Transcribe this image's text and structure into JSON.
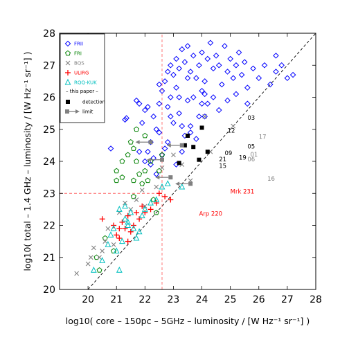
{
  "chart_data": {
    "type": "scatter",
    "xlabel": "log10( core – 150pc – 5GHz – luminosity / [W Hz⁻¹ sr⁻¹] )",
    "ylabel": "log10( total – 1.4 GHz – luminosity / [W Hz⁻¹ sr⁻¹] )",
    "xlim": [
      19,
      28
    ],
    "ylim": [
      20,
      28
    ],
    "xticks": [
      "20",
      "21",
      "22",
      "23",
      "24",
      "25",
      "26",
      "27",
      "28"
    ],
    "yticks": [
      "20",
      "21",
      "22",
      "23",
      "24",
      "25",
      "26",
      "27",
      "28"
    ],
    "grid": false,
    "legend_position": "top-left",
    "reference_lines": {
      "one_to_one": {
        "from": [
          20,
          20
        ],
        "to": [
          28,
          28
        ],
        "style": "dashed",
        "color": "#000000"
      },
      "vertical_cut": {
        "x": 22.6,
        "y_from": 20,
        "y_to": 28,
        "style": "dashed",
        "color": "#ff6666"
      },
      "horizontal_cut": {
        "y": 23.0,
        "x_from": 19,
        "x_to": 22.6,
        "style": "dashed",
        "color": "#ff6666"
      }
    },
    "legend": {
      "entries": [
        {
          "label": "FRII",
          "marker": "diamond",
          "color": "#0000ff"
        },
        {
          "label": "FRI",
          "marker": "pentagon",
          "color": "#008000"
        },
        {
          "label": "BQS",
          "marker": "x",
          "color": "#808080"
        },
        {
          "label": "ULIRG",
          "marker": "plus",
          "color": "#ff0000"
        },
        {
          "label": "RQQ-KUK",
          "marker": "triangle",
          "color": "#00bfbf"
        }
      ],
      "header": "– this paper –",
      "this_paper": [
        {
          "label": "detection",
          "marker": "square",
          "color": "#000000"
        },
        {
          "label": "limit",
          "marker": "arrow",
          "color": "#808080"
        }
      ]
    },
    "series": [
      {
        "name": "FRII",
        "marker": "diamond",
        "color": "#0000ff",
        "points": [
          [
            20.8,
            24.4
          ],
          [
            21.3,
            25.3
          ],
          [
            21.35,
            25.35
          ],
          [
            21.9,
            25.2
          ],
          [
            21.8,
            24.3
          ],
          [
            21.7,
            25.9
          ],
          [
            21.8,
            25.8
          ],
          [
            22.0,
            25.6
          ],
          [
            22.1,
            25.7
          ],
          [
            22.3,
            25.4
          ],
          [
            22.4,
            25.0
          ],
          [
            22.5,
            24.9
          ],
          [
            22.2,
            24.6
          ],
          [
            22.1,
            24.3
          ],
          [
            22.3,
            24.1
          ],
          [
            22.6,
            24.2
          ],
          [
            22.7,
            24.4
          ],
          [
            22.8,
            24.6
          ],
          [
            22.5,
            25.8
          ],
          [
            22.6,
            26.2
          ],
          [
            22.7,
            26.5
          ],
          [
            22.8,
            25.7
          ],
          [
            22.9,
            25.4
          ],
          [
            22.9,
            26.0
          ],
          [
            23.0,
            25.2
          ],
          [
            23.1,
            26.3
          ],
          [
            23.2,
            25.5
          ],
          [
            23.3,
            25.1
          ],
          [
            23.4,
            24.8
          ],
          [
            23.5,
            25.9
          ],
          [
            23.6,
            24.9
          ],
          [
            23.5,
            26.6
          ],
          [
            23.7,
            26.0
          ],
          [
            23.8,
            24.7
          ],
          [
            23.9,
            25.4
          ],
          [
            24.0,
            25.8
          ],
          [
            24.1,
            26.1
          ],
          [
            23.2,
            26.0
          ],
          [
            22.5,
            26.4
          ],
          [
            22.8,
            26.8
          ],
          [
            22.9,
            27.0
          ],
          [
            23.0,
            26.7
          ],
          [
            23.1,
            27.2
          ],
          [
            23.2,
            26.9
          ],
          [
            23.3,
            27.5
          ],
          [
            23.4,
            27.1
          ],
          [
            23.5,
            27.6
          ],
          [
            23.6,
            26.8
          ],
          [
            23.7,
            27.3
          ],
          [
            23.8,
            26.6
          ],
          [
            23.9,
            27.0
          ],
          [
            24.0,
            27.4
          ],
          [
            24.1,
            26.5
          ],
          [
            24.2,
            27.2
          ],
          [
            24.3,
            27.7
          ],
          [
            24.4,
            26.9
          ],
          [
            24.5,
            27.3
          ],
          [
            24.6,
            27.0
          ],
          [
            24.7,
            26.4
          ],
          [
            24.8,
            27.6
          ],
          [
            24.9,
            26.8
          ],
          [
            25.0,
            27.2
          ],
          [
            25.1,
            26.6
          ],
          [
            25.2,
            27.0
          ],
          [
            25.3,
            27.4
          ],
          [
            25.4,
            26.7
          ],
          [
            25.5,
            27.1
          ],
          [
            25.6,
            26.3
          ],
          [
            25.8,
            26.9
          ],
          [
            26.0,
            26.6
          ],
          [
            26.2,
            27.0
          ],
          [
            26.4,
            26.4
          ],
          [
            26.6,
            26.8
          ],
          [
            26.8,
            27.0
          ],
          [
            27.0,
            26.6
          ],
          [
            27.2,
            26.7
          ],
          [
            24.0,
            26.2
          ],
          [
            24.2,
            25.8
          ],
          [
            24.4,
            26.0
          ],
          [
            24.6,
            25.6
          ],
          [
            24.9,
            25.9
          ],
          [
            25.2,
            26.1
          ],
          [
            25.6,
            25.8
          ],
          [
            23.3,
            24.3
          ],
          [
            23.1,
            23.9
          ],
          [
            22.4,
            23.6
          ],
          [
            22.2,
            23.9
          ],
          [
            22.0,
            24.0
          ],
          [
            24.1,
            25.4
          ],
          [
            23.6,
            25.1
          ],
          [
            26.6,
            27.3
          ]
        ]
      },
      {
        "name": "FRI",
        "marker": "pentagon",
        "color": "#008000",
        "points": [
          [
            20.3,
            21.0
          ],
          [
            20.4,
            20.6
          ],
          [
            20.6,
            21.6
          ],
          [
            20.9,
            21.2
          ],
          [
            21.0,
            23.4
          ],
          [
            21.0,
            23.7
          ],
          [
            21.2,
            23.5
          ],
          [
            21.2,
            24.0
          ],
          [
            21.4,
            24.2
          ],
          [
            21.5,
            24.6
          ],
          [
            21.6,
            24.4
          ],
          [
            21.6,
            23.4
          ],
          [
            21.6,
            22.9
          ],
          [
            21.7,
            25.0
          ],
          [
            21.7,
            24.0
          ],
          [
            21.8,
            23.6
          ],
          [
            21.9,
            23.3
          ],
          [
            22.0,
            24.8
          ],
          [
            22.0,
            23.7
          ],
          [
            22.1,
            23.4
          ],
          [
            22.2,
            24.0
          ],
          [
            22.3,
            22.8
          ],
          [
            22.4,
            22.4
          ],
          [
            22.5,
            23.7
          ],
          [
            22.6,
            24.2
          ]
        ]
      },
      {
        "name": "BQS",
        "marker": "x",
        "color": "#808080",
        "points": [
          [
            19.6,
            20.5
          ],
          [
            20.0,
            20.8
          ],
          [
            20.1,
            21.0
          ],
          [
            20.2,
            21.3
          ],
          [
            20.4,
            21.0
          ],
          [
            20.5,
            21.2
          ],
          [
            20.6,
            21.5
          ],
          [
            20.7,
            21.9
          ],
          [
            20.9,
            21.4
          ],
          [
            21.1,
            22.4
          ],
          [
            21.3,
            22.7
          ],
          [
            21.5,
            22.5
          ],
          [
            21.7,
            22.8
          ],
          [
            21.9,
            23.1
          ],
          [
            22.0,
            22.6
          ],
          [
            22.4,
            23.2
          ],
          [
            22.6,
            23.8
          ],
          [
            23.0,
            24.2
          ],
          [
            23.3,
            23.9
          ],
          [
            23.6,
            23.4
          ],
          [
            24.1,
            25.4
          ],
          [
            24.3,
            24.3
          ],
          [
            25.1,
            25.1
          ]
        ]
      },
      {
        "name": "ULIRG",
        "marker": "plus",
        "color": "#ff0000",
        "points": [
          [
            20.5,
            22.2
          ],
          [
            20.9,
            22.0
          ],
          [
            21.0,
            21.7
          ],
          [
            21.1,
            21.6
          ],
          [
            21.2,
            22.1
          ],
          [
            21.3,
            21.9
          ],
          [
            21.4,
            22.3
          ],
          [
            21.5,
            21.8
          ],
          [
            21.6,
            22.0
          ],
          [
            21.7,
            22.4
          ],
          [
            21.8,
            22.2
          ],
          [
            21.9,
            22.6
          ],
          [
            22.0,
            22.4
          ],
          [
            22.2,
            22.5
          ],
          [
            22.4,
            22.7
          ],
          [
            22.5,
            23.0
          ],
          [
            22.7,
            22.9
          ],
          [
            22.9,
            22.8
          ],
          [
            21.1,
            21.9
          ],
          [
            21.4,
            21.5
          ]
        ]
      },
      {
        "name": "RQQ-KUK",
        "marker": "triangle",
        "color": "#00bfbf",
        "points": [
          [
            20.2,
            20.6
          ],
          [
            20.5,
            20.9
          ],
          [
            20.7,
            21.4
          ],
          [
            20.8,
            21.7
          ],
          [
            20.9,
            21.9
          ],
          [
            21.0,
            21.2
          ],
          [
            21.1,
            20.6
          ],
          [
            21.2,
            21.5
          ],
          [
            21.3,
            22.2
          ],
          [
            21.3,
            22.6
          ],
          [
            21.4,
            22.1
          ],
          [
            21.5,
            22.4
          ],
          [
            21.6,
            21.9
          ],
          [
            21.7,
            21.6
          ],
          [
            21.8,
            21.8
          ],
          [
            21.9,
            22.3
          ],
          [
            22.0,
            22.5
          ],
          [
            22.2,
            22.7
          ],
          [
            22.4,
            22.8
          ],
          [
            22.6,
            23.2
          ],
          [
            22.8,
            23.3
          ],
          [
            23.3,
            23.2
          ],
          [
            21.4,
            22.0
          ],
          [
            21.1,
            22.5
          ]
        ]
      },
      {
        "name": "detection",
        "marker": "square",
        "color": "#000000",
        "points": [
          [
            23.2,
            23.95
          ],
          [
            23.4,
            24.5
          ],
          [
            23.5,
            24.8
          ],
          [
            23.7,
            24.45
          ],
          [
            23.9,
            24.05
          ],
          [
            24.0,
            25.05
          ],
          [
            24.2,
            24.3
          ]
        ]
      },
      {
        "name": "limit",
        "marker": "arrow",
        "color": "#808080",
        "points": [
          [
            22.2,
            24.6
          ],
          [
            22.6,
            24.05
          ],
          [
            22.9,
            23.5
          ],
          [
            23.3,
            24.5
          ],
          [
            23.6,
            23.3
          ]
        ]
      }
    ],
    "annotations": [
      {
        "text": "03",
        "x": 25.6,
        "y": 25.3,
        "color": "#000000"
      },
      {
        "text": "12",
        "x": 24.9,
        "y": 24.9,
        "color": "#000000"
      },
      {
        "text": "17",
        "x": 26.0,
        "y": 24.7,
        "color": "#808080"
      },
      {
        "text": "05",
        "x": 25.6,
        "y": 24.4,
        "color": "#000000"
      },
      {
        "text": "09",
        "x": 24.8,
        "y": 24.2,
        "color": "#000000"
      },
      {
        "text": "01",
        "x": 25.7,
        "y": 24.15,
        "color": "#808080"
      },
      {
        "text": "19",
        "x": 25.3,
        "y": 24.05,
        "color": "#000000"
      },
      {
        "text": "06",
        "x": 25.6,
        "y": 24.0,
        "color": "#808080"
      },
      {
        "text": "21",
        "x": 24.6,
        "y": 24.0,
        "color": "#000000"
      },
      {
        "text": "15",
        "x": 24.6,
        "y": 23.8,
        "color": "#000000"
      },
      {
        "text": "16",
        "x": 26.3,
        "y": 23.4,
        "color": "#808080"
      },
      {
        "text": "Mrk 231",
        "x": 25.0,
        "y": 23.0,
        "color": "#ff0000"
      },
      {
        "text": "Arp 220",
        "x": 23.9,
        "y": 22.3,
        "color": "#ff0000"
      }
    ]
  }
}
